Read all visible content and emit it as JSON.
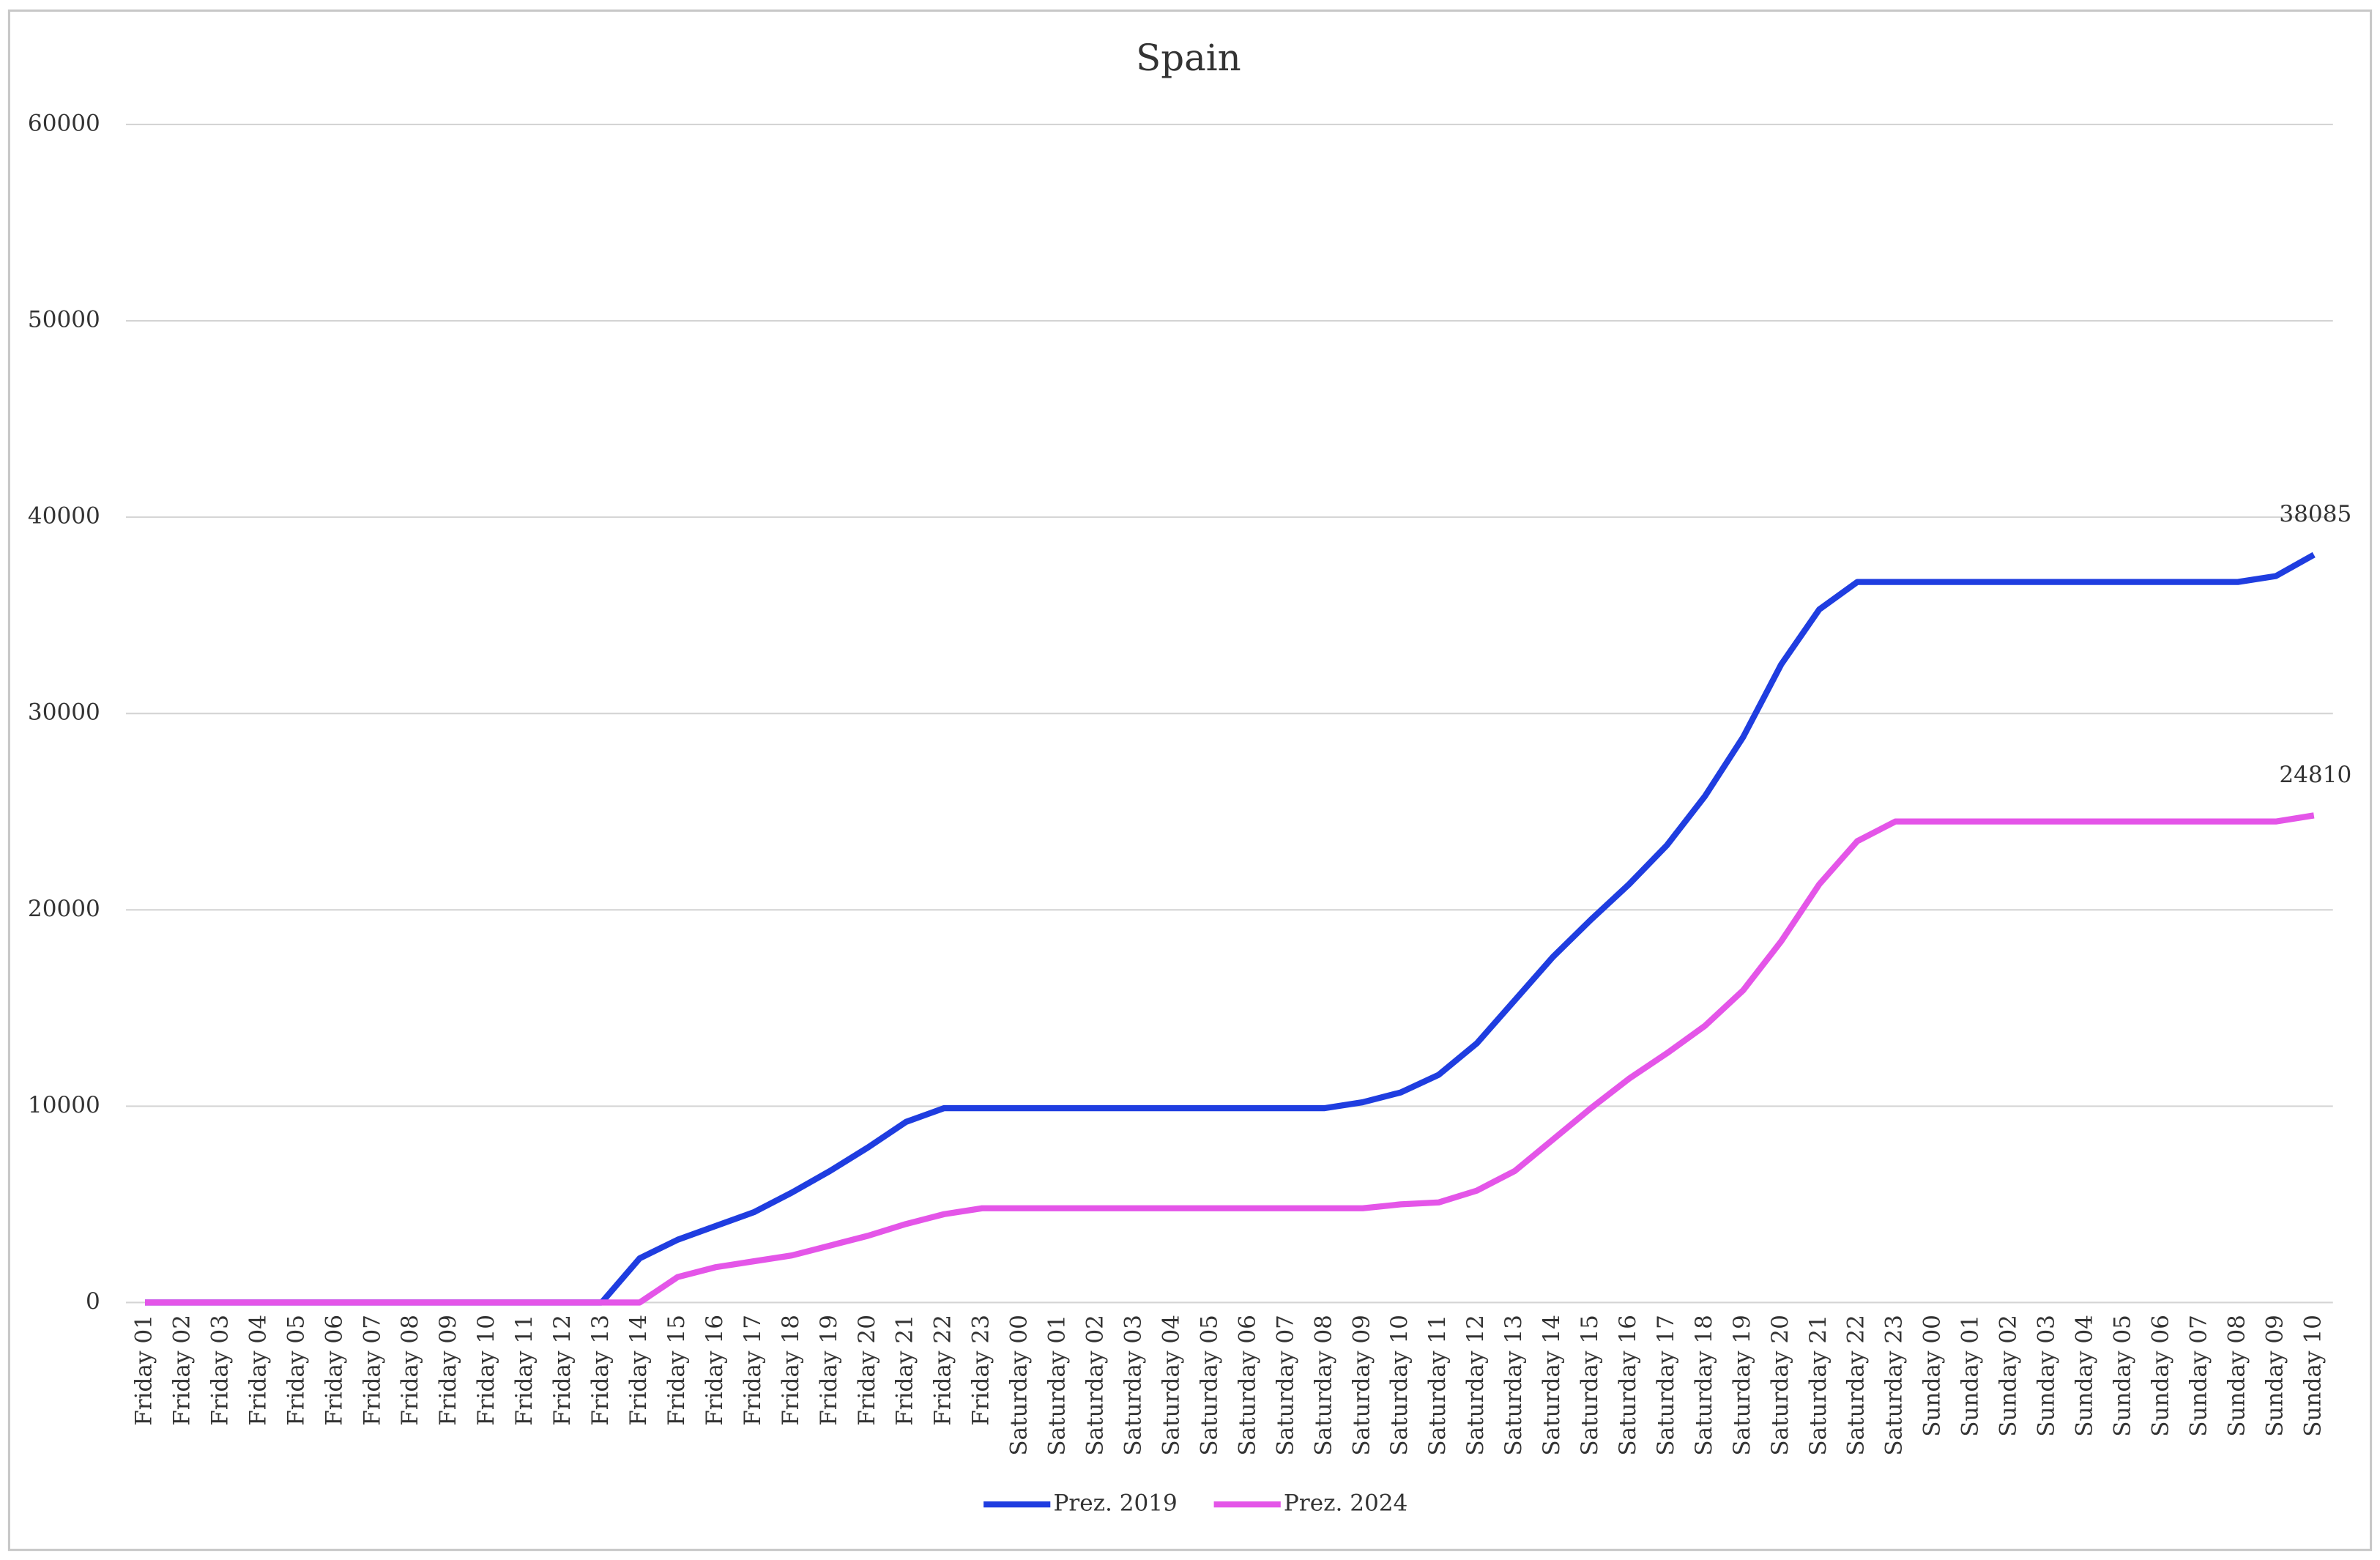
{
  "chart_data": {
    "type": "line",
    "title": "Spain",
    "categories": [
      "Friday 01",
      "Friday 02",
      "Friday 03",
      "Friday 04",
      "Friday 05",
      "Friday 06",
      "Friday 07",
      "Friday 08",
      "Friday 09",
      "Friday 10",
      "Friday 11",
      "Friday 12",
      "Friday 13",
      "Friday 14",
      "Friday 15",
      "Friday 16",
      "Friday 17",
      "Friday 18",
      "Friday 19",
      "Friday 20",
      "Friday 21",
      "Friday 22",
      "Friday 23",
      "Saturday 00",
      "Saturday 01",
      "Saturday 02",
      "Saturday 03",
      "Saturday 04",
      "Saturday 05",
      "Saturday 06",
      "Saturday 07",
      "Saturday 08",
      "Saturday 09",
      "Saturday 10",
      "Saturday 11",
      "Saturday 12",
      "Saturday 13",
      "Saturday 14",
      "Saturday 15",
      "Saturday 16",
      "Saturday 17",
      "Saturday 18",
      "Saturday 19",
      "Saturday 20",
      "Saturday 21",
      "Saturday 22",
      "Saturday 23",
      "Sunday 00",
      "Sunday 01",
      "Sunday 02",
      "Sunday 03",
      "Sunday 04",
      "Sunday 05",
      "Sunday 06",
      "Sunday 07",
      "Sunday 08",
      "Sunday 09",
      "Sunday 10"
    ],
    "series": [
      {
        "name": "Prez. 2019",
        "color": "#1f3de0",
        "values": [
          0,
          0,
          0,
          0,
          0,
          0,
          0,
          0,
          0,
          0,
          0,
          0,
          0,
          2250,
          3200,
          3900,
          4600,
          5600,
          6700,
          7900,
          9200,
          9900,
          9900,
          9900,
          9900,
          9900,
          9900,
          9900,
          9900,
          9900,
          9900,
          9900,
          10200,
          10700,
          11600,
          13200,
          15400,
          17600,
          19500,
          21300,
          23300,
          25800,
          28800,
          32500,
          35300,
          36700,
          36700,
          36700,
          36700,
          36700,
          36700,
          36700,
          36700,
          36700,
          36700,
          36700,
          37000,
          38085
        ]
      },
      {
        "name": "Prez. 2024",
        "color": "#e455e8",
        "values": [
          0,
          0,
          0,
          0,
          0,
          0,
          0,
          0,
          0,
          0,
          0,
          0,
          0,
          0,
          1300,
          1800,
          2100,
          2400,
          2900,
          3400,
          4000,
          4500,
          4800,
          4800,
          4800,
          4800,
          4800,
          4800,
          4800,
          4800,
          4800,
          4800,
          4800,
          5000,
          5100,
          5700,
          6700,
          8300,
          9900,
          11400,
          12700,
          14100,
          15900,
          18400,
          21300,
          23500,
          24500,
          24500,
          24500,
          24500,
          24500,
          24500,
          24500,
          24500,
          24500,
          24500,
          24500,
          24810
        ]
      }
    ],
    "ylim": [
      0,
      60000
    ],
    "yticks": [
      0,
      10000,
      20000,
      30000,
      40000,
      50000,
      60000
    ],
    "grid": true,
    "data_labels": "last",
    "legend": "bottom"
  }
}
